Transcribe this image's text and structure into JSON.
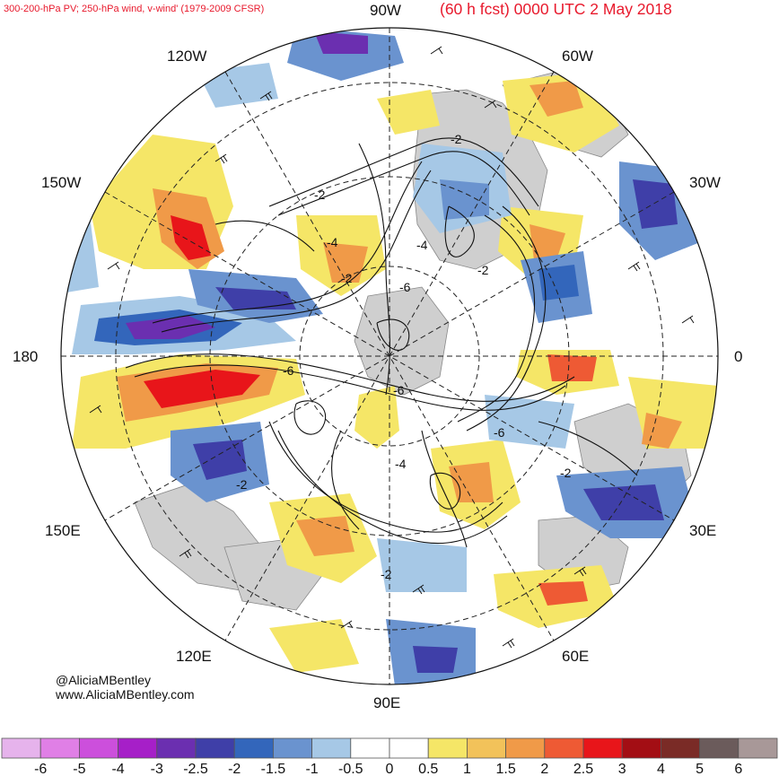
{
  "header": {
    "left_title": "300-200-hPa PV; 250-hPa wind, v-wind' (1979-2009 CFSR)",
    "right_title": "(60 h fcst) 0000 UTC 2 May 2018"
  },
  "map_labels": {
    "lon_90w": "90W",
    "lon_60w": "60W",
    "lon_120w": "120W",
    "lon_150w": "150W",
    "lon_30w": "30W",
    "lon_180": "180",
    "lon_0": "0",
    "lon_150e": "150E",
    "lon_30e": "30E",
    "lon_120e": "120E",
    "lon_60e": "60E",
    "lon_90e": "90E"
  },
  "contour_labels": [
    "-2",
    "-2",
    "-4",
    "-2",
    "-6",
    "-6",
    "-6",
    "-4",
    "-6",
    "-2",
    "-2",
    "-2",
    "-2",
    "-4"
  ],
  "credits": {
    "handle": "@AliciaMBentley",
    "website": "www.AliciaMBentley.com"
  },
  "colorbar": {
    "colors": [
      "#e6b3ec",
      "#e07fe6",
      "#cc4fdc",
      "#a61fc8",
      "#6b2fb0",
      "#3f3fa8",
      "#3366bb",
      "#6a93cf",
      "#a6c8e6",
      "#ffffff",
      "#ffffff",
      "#f5e667",
      "#f2c25a",
      "#f09a48",
      "#ee5a34",
      "#e8151a",
      "#a30e14",
      "#7a2b26",
      "#6b5b5b",
      "#a89898"
    ],
    "labels": [
      "-6",
      "-5",
      "-4",
      "-3",
      "-2.5",
      "-2",
      "-1.5",
      "-1",
      "-0.5",
      "0",
      "0.5",
      "1",
      "1.5",
      "2",
      "2.5",
      "3",
      "4",
      "5",
      "6"
    ]
  }
}
